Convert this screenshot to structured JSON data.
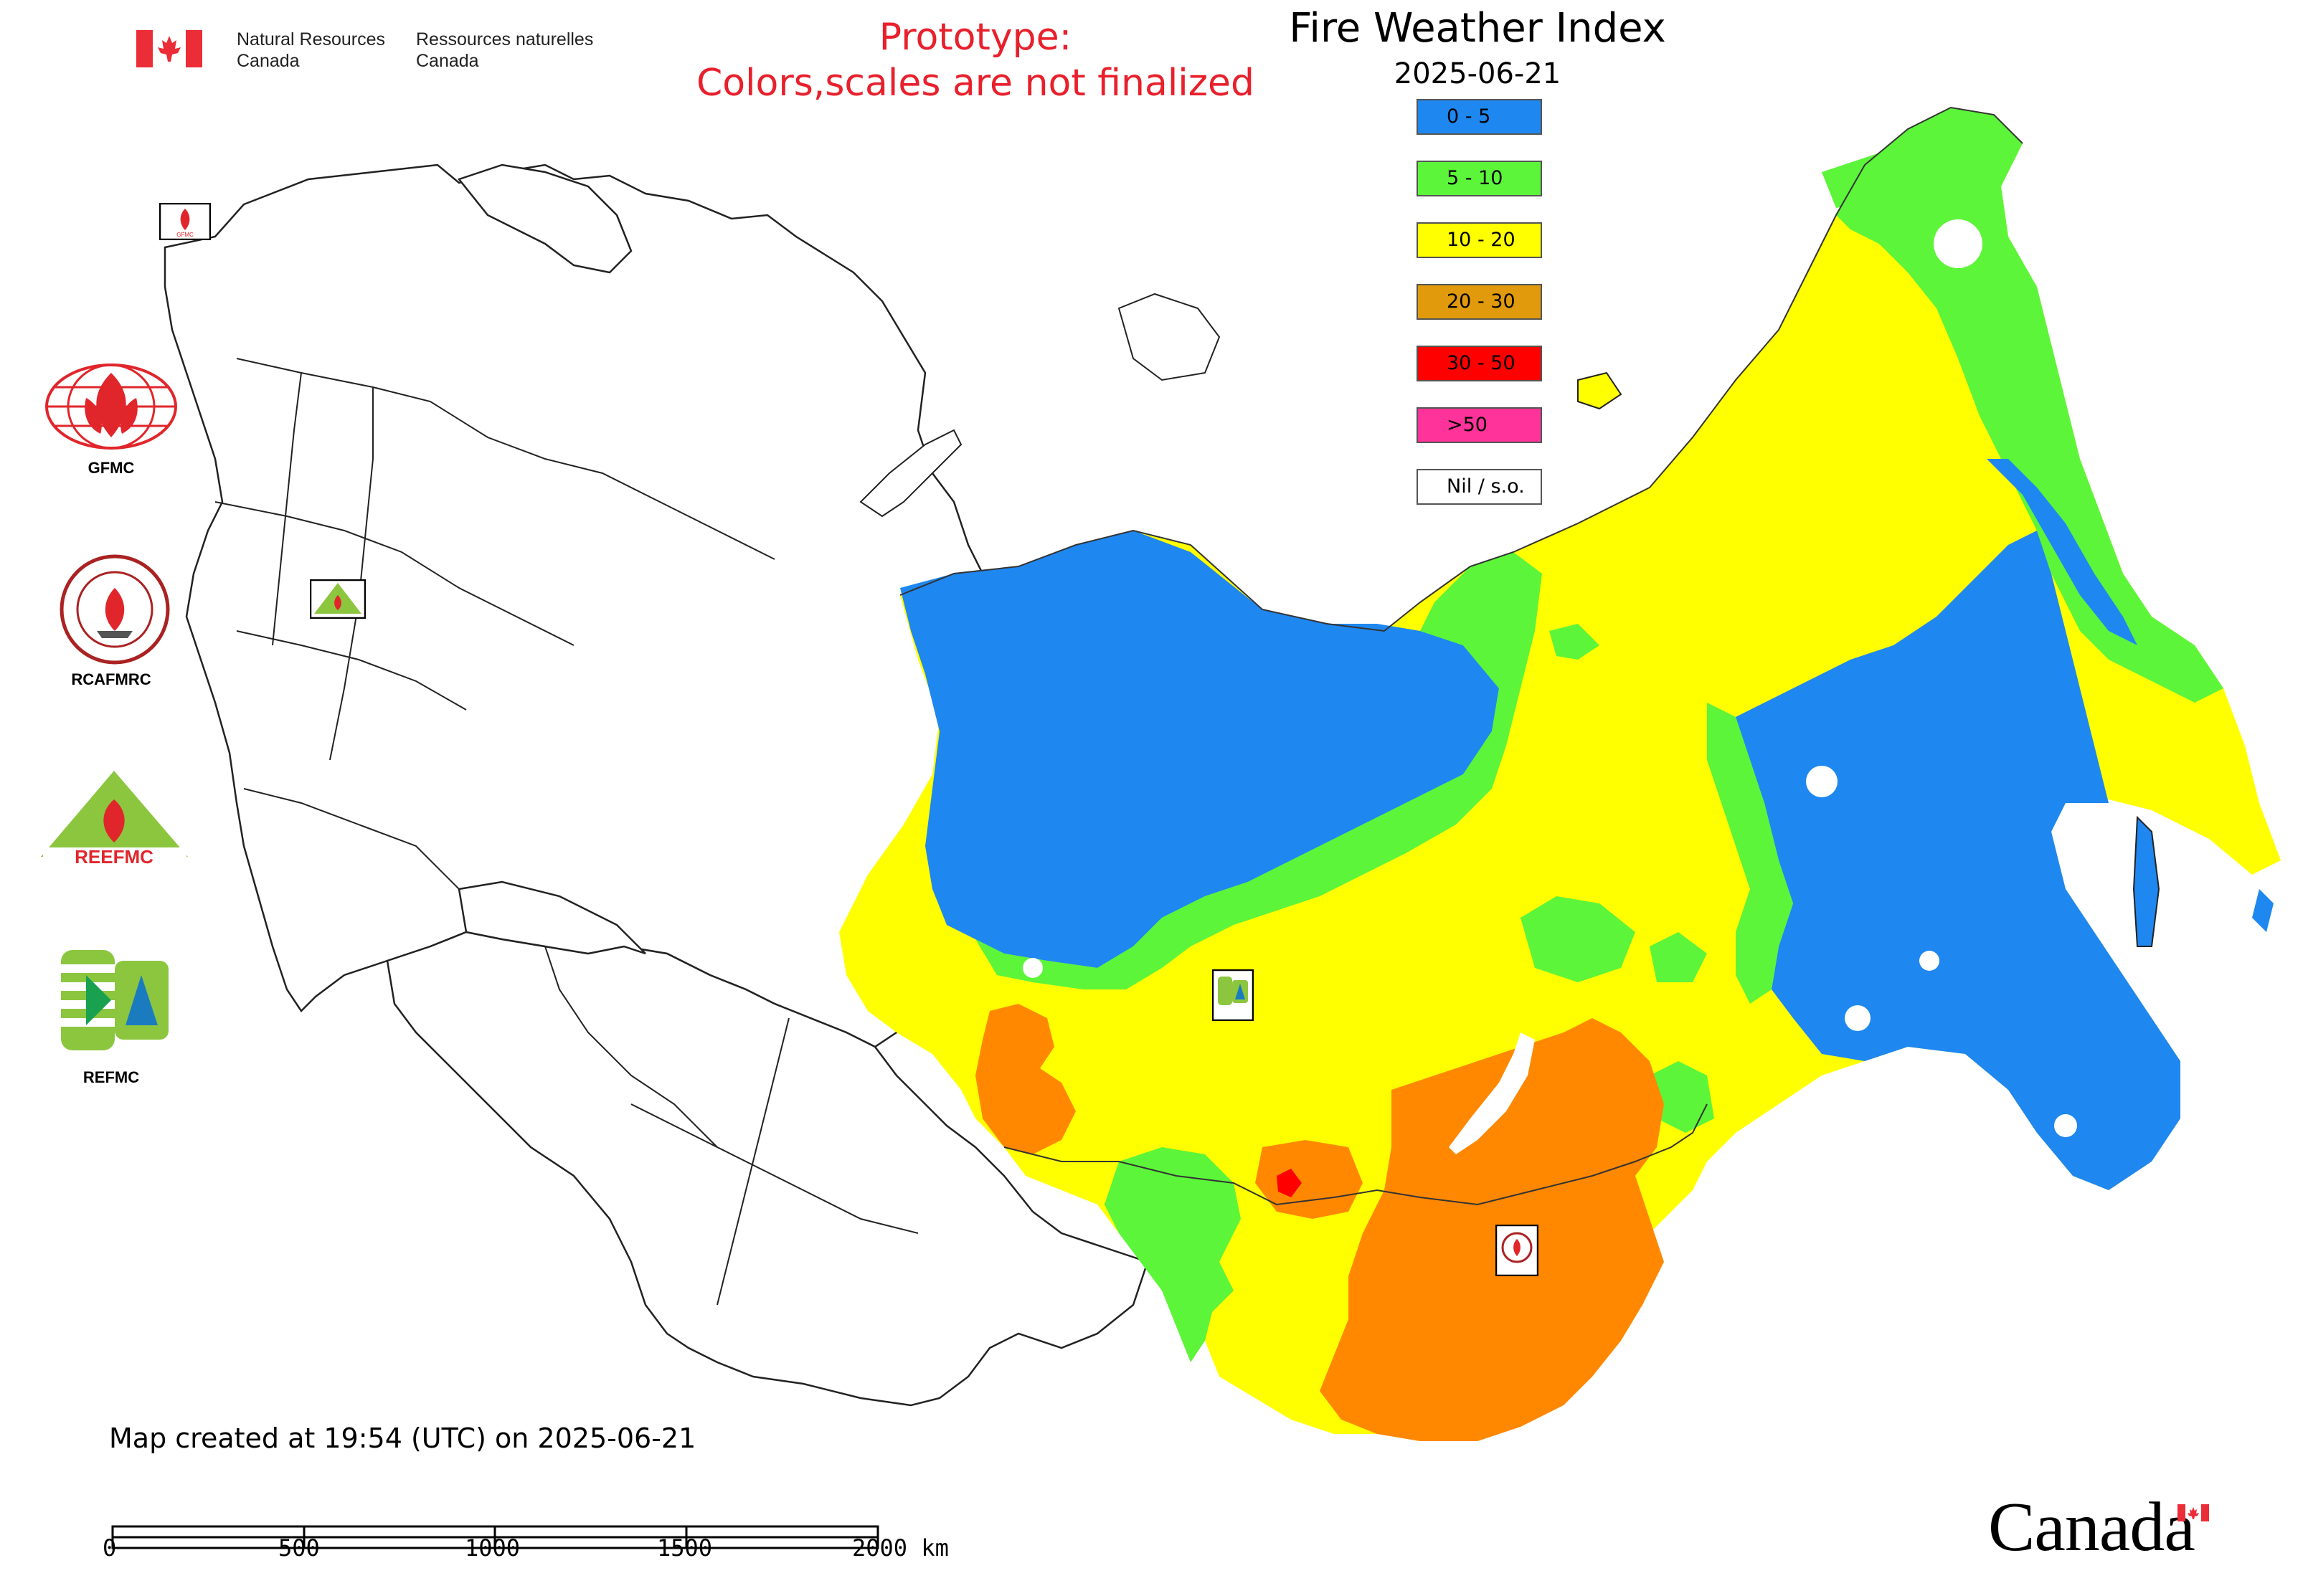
{
  "header": {
    "department_en": [
      "Natural Resources",
      "Canada"
    ],
    "department_fr": [
      "Ressources naturelles",
      "Canada"
    ],
    "prototype_note": [
      "Prototype:",
      "Colors,scales are not finalized"
    ]
  },
  "title": "Fire Weather Index",
  "date": "2025-06-21",
  "legend": [
    {
      "label": "0 - 5",
      "color": "#1e87f0"
    },
    {
      "label": "5 - 10",
      "color": "#5cf53a"
    },
    {
      "label": "10 - 20",
      "color": "#ffff00"
    },
    {
      "label": "20 - 30",
      "color": "#e09a0c"
    },
    {
      "label": "30 - 50",
      "color": "#ff0000"
    },
    {
      "label": ">50",
      "color": "#ff3399"
    },
    {
      "label": "Nil / s.o.",
      "color": "#ffffff"
    }
  ],
  "map_colors": {
    "blue": "#1e87f0",
    "green": "#5cf53a",
    "yellow": "#ffff00",
    "orange": "#ff8800",
    "red": "#ff0000"
  },
  "partners": [
    "GFMC",
    "RCAFMRC",
    "REEFMC",
    "REFMC"
  ],
  "footer": {
    "created": "Map created at 19:54 (UTC) on 2025-06-21",
    "scale_labels": [
      "0",
      "500",
      "1000",
      "1500",
      "2000 km"
    ],
    "wordmark": "Canada"
  }
}
